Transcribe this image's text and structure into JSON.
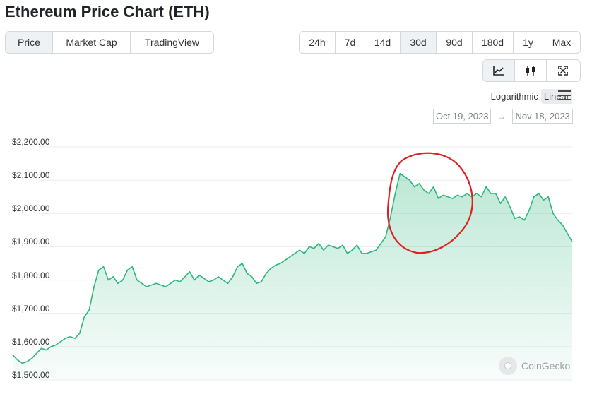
{
  "title": "Ethereum Price Chart (ETH)",
  "tabs": [
    {
      "label": "Price",
      "active": true
    },
    {
      "label": "Market Cap",
      "active": false
    },
    {
      "label": "TradingView",
      "active": false
    }
  ],
  "ranges": [
    {
      "label": "24h",
      "active": false
    },
    {
      "label": "7d",
      "active": false
    },
    {
      "label": "14d",
      "active": false
    },
    {
      "label": "30d",
      "active": true
    },
    {
      "label": "90d",
      "active": false
    },
    {
      "label": "180d",
      "active": false
    },
    {
      "label": "1y",
      "active": false
    },
    {
      "label": "Max",
      "active": false
    }
  ],
  "views": [
    {
      "icon": "line-chart-icon",
      "active": true
    },
    {
      "icon": "candlestick-icon",
      "active": false
    },
    {
      "icon": "fullscreen-icon",
      "active": false
    }
  ],
  "scale": {
    "logarithmic": "Logarithmic",
    "linear": "Linear",
    "active": "linear"
  },
  "date_range": {
    "from": "Oct 19, 2023",
    "to": "Nov 18, 2023"
  },
  "watermark": "CoinGecko",
  "colors": {
    "line": "#2eb67d",
    "annotation": "#e02020",
    "grid": "#e9ecef"
  },
  "chart_data": {
    "type": "area",
    "title": "",
    "xlabel": "",
    "ylabel": "",
    "ylim": [
      1500,
      2200
    ],
    "yticks": [
      "$2,200.00",
      "$2,100.00",
      "$2,000.00",
      "$1,900.00",
      "$1,800.00",
      "$1,700.00",
      "$1,600.00",
      "$1,500.00"
    ],
    "x_range": [
      "Oct 19, 2023",
      "Nov 18, 2023"
    ],
    "grid": true,
    "series": [
      {
        "values": [
          1575,
          1560,
          1550,
          1555,
          1565,
          1580,
          1595,
          1590,
          1600,
          1605,
          1615,
          1625,
          1630,
          1625,
          1640,
          1690,
          1710,
          1780,
          1830,
          1840,
          1800,
          1810,
          1790,
          1800,
          1830,
          1840,
          1800,
          1790,
          1780,
          1785,
          1790,
          1785,
          1780,
          1790,
          1800,
          1795,
          1810,
          1825,
          1800,
          1815,
          1805,
          1795,
          1800,
          1810,
          1800,
          1790,
          1810,
          1840,
          1850,
          1820,
          1810,
          1790,
          1795,
          1820,
          1835,
          1845,
          1850,
          1860,
          1870,
          1880,
          1890,
          1880,
          1900,
          1895,
          1910,
          1890,
          1905,
          1900,
          1895,
          1905,
          1880,
          1890,
          1905,
          1880,
          1880,
          1885,
          1890,
          1910,
          1930,
          1990,
          2060,
          2120,
          2110,
          2100,
          2080,
          2090,
          2070,
          2060,
          2080,
          2045,
          2055,
          2050,
          2045,
          2055,
          2050,
          2060,
          2050,
          2060,
          2050,
          2080,
          2060,
          2060,
          2030,
          2050,
          2020,
          1985,
          1990,
          1980,
          2010,
          2050,
          2060,
          2040,
          2050,
          2000,
          1980,
          1965,
          1940,
          1915
        ]
      }
    ]
  }
}
